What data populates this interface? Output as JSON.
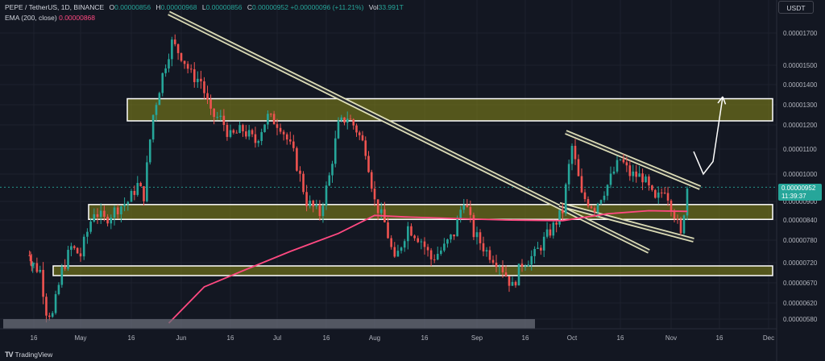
{
  "legend": {
    "pair": "PEPE / TetherUS, 1D, BINANCE",
    "o_label": "O",
    "o_value": "0.00000856",
    "h_label": "H",
    "h_value": "0.00000968",
    "l_label": "L",
    "l_value": "0.00000856",
    "c_label": "C",
    "c_value": "0.00000952",
    "change": "+0.00000096 (+11.21%)",
    "vol_label": "Vol",
    "vol_value": "33.991T",
    "ema_label": "EMA (200, close)",
    "ema_value": "0.00000868"
  },
  "currency": "USDT",
  "last_price": {
    "price": "0.00000952",
    "countdown": "11:39:37"
  },
  "branding": "TradingView",
  "colors": {
    "up": "#26a69a",
    "down": "#ef5350",
    "ema": "#ff4981",
    "zone_fill": "#8a8a17",
    "zone_border": "#ffffff"
  },
  "chart_data": {
    "type": "candlestick",
    "x_range": [
      "2023-04-06",
      "2023-12-01"
    ],
    "y_range": [
      5.7e-06,
      1.78e-05
    ],
    "y_ticks": [
      "0.00001700",
      "0.00001500",
      "0.00001400",
      "0.00001300",
      "0.00001200",
      "0.00001100",
      "0.00001000",
      "0.00000900",
      "0.00000840",
      "0.00000780",
      "0.00000720",
      "0.00000670",
      "0.00000620",
      "0.00000580"
    ],
    "x_ticks": [
      {
        "date": "2023-04-16",
        "label": "16"
      },
      {
        "date": "2023-05-01",
        "label": "May"
      },
      {
        "date": "2023-05-16",
        "label": "16"
      },
      {
        "date": "2023-06-01",
        "label": "Jun"
      },
      {
        "date": "2023-06-16",
        "label": "16"
      },
      {
        "date": "2023-07-01",
        "label": "Jul"
      },
      {
        "date": "2023-07-16",
        "label": "16"
      },
      {
        "date": "2023-08-01",
        "label": "Aug"
      },
      {
        "date": "2023-08-16",
        "label": "16"
      },
      {
        "date": "2023-09-01",
        "label": "Sep"
      },
      {
        "date": "2023-09-16",
        "label": "16"
      },
      {
        "date": "2023-10-01",
        "label": "Oct"
      },
      {
        "date": "2023-10-16",
        "label": "16"
      },
      {
        "date": "2023-11-01",
        "label": "Nov"
      },
      {
        "date": "2023-11-16",
        "label": "16"
      },
      {
        "date": "2023-12-01",
        "label": "Dec"
      }
    ],
    "close_path": [
      [
        "2023-04-12",
        7.4e-06
      ],
      [
        "2023-04-15",
        7.2e-06
      ],
      [
        "2023-04-18",
        7e-06
      ],
      [
        "2023-04-20",
        6e-06
      ],
      [
        "2023-04-22",
        5.9e-06
      ],
      [
        "2023-04-25",
        7e-06
      ],
      [
        "2023-04-28",
        7.6e-06
      ],
      [
        "2023-05-01",
        7.4e-06
      ],
      [
        "2023-05-05",
        8.7e-06
      ],
      [
        "2023-05-08",
        8.4e-06
      ],
      [
        "2023-05-12",
        8.8e-06
      ],
      [
        "2023-05-15",
        9e-06
      ],
      [
        "2023-05-18",
        9.6e-06
      ],
      [
        "2023-05-20",
        9.2e-06
      ],
      [
        "2023-05-23",
        1.25e-05
      ],
      [
        "2023-05-26",
        1.45e-05
      ],
      [
        "2023-05-29",
        1.64e-05
      ],
      [
        "2023-06-01",
        1.56e-05
      ],
      [
        "2023-06-04",
        1.45e-05
      ],
      [
        "2023-06-07",
        1.42e-05
      ],
      [
        "2023-06-10",
        1.25e-05
      ],
      [
        "2023-06-13",
        1.23e-05
      ],
      [
        "2023-06-16",
        1.15e-05
      ],
      [
        "2023-06-20",
        1.18e-05
      ],
      [
        "2023-06-24",
        1.13e-05
      ],
      [
        "2023-06-28",
        1.24e-05
      ],
      [
        "2023-07-02",
        1.2e-05
      ],
      [
        "2023-07-06",
        1.08e-05
      ],
      [
        "2023-07-10",
        9e-06
      ],
      [
        "2023-07-14",
        8.6e-06
      ],
      [
        "2023-07-17",
        9.9e-06
      ],
      [
        "2023-07-20",
        1.2e-05
      ],
      [
        "2023-07-23",
        1.24e-05
      ],
      [
        "2023-07-26",
        1.18e-05
      ],
      [
        "2023-07-29",
        1.1e-05
      ],
      [
        "2023-08-01",
        9e-06
      ],
      [
        "2023-08-04",
        8.3e-06
      ],
      [
        "2023-08-07",
        7.2e-06
      ],
      [
        "2023-08-11",
        8.2e-06
      ],
      [
        "2023-08-15",
        7.8e-06
      ],
      [
        "2023-08-18",
        7.3e-06
      ],
      [
        "2023-08-22",
        7.6e-06
      ],
      [
        "2023-08-25",
        8e-06
      ],
      [
        "2023-08-28",
        9.1e-06
      ],
      [
        "2023-08-31",
        8e-06
      ],
      [
        "2023-09-04",
        7.5e-06
      ],
      [
        "2023-09-08",
        7.2e-06
      ],
      [
        "2023-09-12",
        6.6e-06
      ],
      [
        "2023-09-15",
        7.2e-06
      ],
      [
        "2023-09-19",
        7.4e-06
      ],
      [
        "2023-09-22",
        7.8e-06
      ],
      [
        "2023-09-25",
        8.2e-06
      ],
      [
        "2023-09-28",
        8.7e-06
      ],
      [
        "2023-10-01",
        1.11e-05
      ],
      [
        "2023-10-04",
        9.2e-06
      ],
      [
        "2023-10-08",
        8.8e-06
      ],
      [
        "2023-10-12",
        9.6e-06
      ],
      [
        "2023-10-16",
        1.06e-05
      ],
      [
        "2023-10-19",
        1e-05
      ],
      [
        "2023-10-23",
        9.9e-06
      ],
      [
        "2023-10-27",
        9e-06
      ],
      [
        "2023-10-30",
        9.5e-06
      ],
      [
        "2023-11-02",
        8.6e-06
      ],
      [
        "2023-11-04",
        7.9e-06
      ],
      [
        "2023-11-06",
        9.52e-06
      ]
    ],
    "ema_200": [
      [
        "2023-05-28",
        5.7e-06
      ],
      [
        "2023-06-08",
        6.6e-06
      ],
      [
        "2023-06-20",
        7e-06
      ],
      [
        "2023-07-05",
        7.5e-06
      ],
      [
        "2023-07-20",
        8e-06
      ],
      [
        "2023-08-01",
        8.55e-06
      ],
      [
        "2023-08-10",
        8.5e-06
      ],
      [
        "2023-08-25",
        8.45e-06
      ],
      [
        "2023-09-10",
        8.4e-06
      ],
      [
        "2023-09-28",
        8.38e-06
      ],
      [
        "2023-10-12",
        8.6e-06
      ],
      [
        "2023-10-25",
        8.7e-06
      ],
      [
        "2023-11-06",
        8.68e-06
      ]
    ],
    "zones": [
      {
        "from": "2023-05-26",
        "to": "2023-12-01",
        "low": 1.22e-05,
        "high": 1.33e-05
      },
      {
        "from": "2023-04-23",
        "to": "2023-12-01",
        "low": 8.42e-06,
        "high": 8.9e-06
      },
      {
        "from": "2023-04-17",
        "to": "2023-12-01",
        "low": 6.88e-06,
        "high": 7.12e-06
      }
    ],
    "trendlines": [
      {
        "from": [
          "2023-05-28",
          1.76e-05
        ],
        "to": [
          "2023-10-25",
          7.5e-06
        ]
      },
      {
        "from": [
          "2023-09-27",
          8.9e-06
        ],
        "to": [
          "2023-11-08",
          7.8e-06
        ]
      },
      {
        "from": [
          "2023-09-29",
          1.17e-05
        ],
        "to": [
          "2023-11-10",
          9.5e-06
        ]
      }
    ],
    "projection": [
      [
        "2023-11-08",
        1.09e-05
      ],
      [
        "2023-11-11",
        1e-05
      ],
      [
        "2023-11-14",
        1.05e-05
      ],
      [
        "2023-11-17",
        1.34e-05
      ]
    ]
  }
}
